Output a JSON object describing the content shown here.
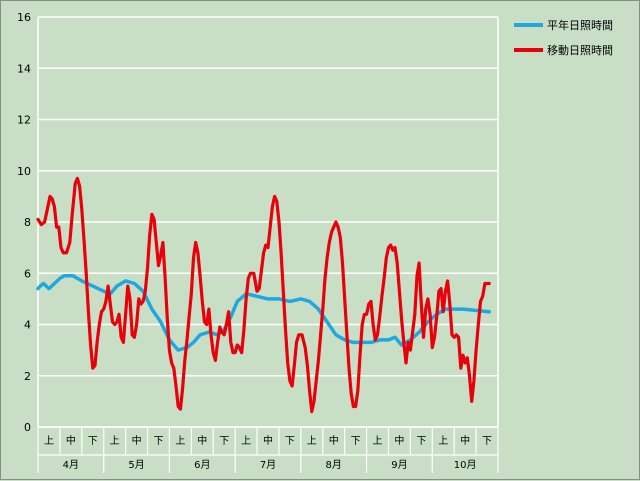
{
  "colors": {
    "plot_bg": "#c8dfc6",
    "grid": "#ffffff",
    "normal": "#1fa8e0",
    "moving": "#e8000b"
  },
  "chart_data": {
    "type": "line",
    "title": "",
    "xlabel": "",
    "ylabel": "",
    "ylim": [
      0,
      16
    ],
    "yticks": [
      "0",
      "2",
      "4",
      "6",
      "8",
      "10",
      "12",
      "14",
      "16"
    ],
    "grid": true,
    "legend_position": "top-right",
    "months": [
      "4月",
      "5月",
      "6月",
      "7月",
      "8月",
      "9月",
      "10月"
    ],
    "periods": [
      "上",
      "中",
      "下"
    ],
    "series": [
      {
        "name": "平年日照時間",
        "color": "#1fa8e0",
        "points": [
          [
            0,
            5.4
          ],
          [
            0.1,
            5.5
          ],
          [
            0.25,
            5.6
          ],
          [
            0.5,
            5.4
          ],
          [
            0.75,
            5.6
          ],
          [
            1,
            5.8
          ],
          [
            1.2,
            5.9
          ],
          [
            1.6,
            5.9
          ],
          [
            2,
            5.7
          ],
          [
            2.5,
            5.5
          ],
          [
            3,
            5.3
          ],
          [
            3.3,
            5.2
          ],
          [
            3.6,
            5.5
          ],
          [
            4,
            5.7
          ],
          [
            4.4,
            5.6
          ],
          [
            4.8,
            5.3
          ],
          [
            5.2,
            4.6
          ],
          [
            5.6,
            4.1
          ],
          [
            6,
            3.4
          ],
          [
            6.4,
            3.0
          ],
          [
            6.8,
            3.1
          ],
          [
            7.1,
            3.3
          ],
          [
            7.4,
            3.6
          ],
          [
            7.8,
            3.7
          ],
          [
            8.2,
            3.6
          ],
          [
            8.5,
            3.8
          ],
          [
            8.8,
            4.3
          ],
          [
            9.1,
            4.9
          ],
          [
            9.5,
            5.2
          ],
          [
            10,
            5.1
          ],
          [
            10.5,
            5.0
          ],
          [
            11,
            5.0
          ],
          [
            11.5,
            4.9
          ],
          [
            12,
            5.0
          ],
          [
            12.4,
            4.9
          ],
          [
            12.8,
            4.6
          ],
          [
            13.2,
            4.1
          ],
          [
            13.6,
            3.6
          ],
          [
            14,
            3.4
          ],
          [
            14.4,
            3.3
          ],
          [
            14.8,
            3.3
          ],
          [
            15.2,
            3.3
          ],
          [
            15.6,
            3.4
          ],
          [
            16,
            3.4
          ],
          [
            16.3,
            3.5
          ],
          [
            16.6,
            3.2
          ],
          [
            17,
            3.4
          ],
          [
            17.4,
            3.7
          ],
          [
            17.8,
            4.1
          ],
          [
            18.2,
            4.4
          ],
          [
            18.6,
            4.6
          ],
          [
            19,
            4.6
          ],
          [
            19.4,
            4.6
          ],
          [
            20.6,
            4.5
          ]
        ]
      },
      {
        "name": "移動日照時間",
        "color": "#e8000b",
        "points": [
          [
            0,
            8.1
          ],
          [
            0.15,
            7.9
          ],
          [
            0.3,
            8.0
          ],
          [
            0.45,
            8.6
          ],
          [
            0.55,
            9.0
          ],
          [
            0.65,
            8.9
          ],
          [
            0.75,
            8.6
          ],
          [
            0.85,
            7.8
          ],
          [
            0.95,
            7.8
          ],
          [
            1.05,
            7.0
          ],
          [
            1.15,
            6.8
          ],
          [
            1.3,
            6.8
          ],
          [
            1.45,
            7.2
          ],
          [
            1.55,
            8.2
          ],
          [
            1.7,
            9.5
          ],
          [
            1.8,
            9.7
          ],
          [
            1.9,
            9.4
          ],
          [
            2.0,
            8.5
          ],
          [
            2.1,
            7.3
          ],
          [
            2.2,
            6.0
          ],
          [
            2.3,
            4.5
          ],
          [
            2.4,
            3.2
          ],
          [
            2.5,
            2.3
          ],
          [
            2.6,
            2.4
          ],
          [
            2.7,
            3.3
          ],
          [
            2.8,
            4.0
          ],
          [
            2.9,
            4.5
          ],
          [
            3.0,
            4.6
          ],
          [
            3.1,
            4.9
          ],
          [
            3.2,
            5.5
          ],
          [
            3.3,
            4.8
          ],
          [
            3.4,
            4.1
          ],
          [
            3.5,
            4.0
          ],
          [
            3.6,
            4.1
          ],
          [
            3.7,
            4.4
          ],
          [
            3.8,
            3.5
          ],
          [
            3.9,
            3.3
          ],
          [
            4.0,
            4.4
          ],
          [
            4.1,
            5.5
          ],
          [
            4.2,
            5.0
          ],
          [
            4.3,
            3.6
          ],
          [
            4.4,
            3.5
          ],
          [
            4.5,
            4.0
          ],
          [
            4.6,
            5.0
          ],
          [
            4.7,
            4.8
          ],
          [
            4.8,
            4.9
          ],
          [
            4.9,
            5.3
          ],
          [
            5.0,
            6.2
          ],
          [
            5.1,
            7.5
          ],
          [
            5.2,
            8.3
          ],
          [
            5.3,
            8.1
          ],
          [
            5.4,
            7.2
          ],
          [
            5.5,
            6.3
          ],
          [
            5.6,
            6.7
          ],
          [
            5.7,
            7.2
          ],
          [
            5.8,
            5.9
          ],
          [
            5.9,
            4.3
          ],
          [
            6.0,
            3.0
          ],
          [
            6.1,
            2.5
          ],
          [
            6.2,
            2.3
          ],
          [
            6.3,
            1.6
          ],
          [
            6.4,
            0.8
          ],
          [
            6.5,
            0.7
          ],
          [
            6.6,
            1.5
          ],
          [
            6.7,
            2.6
          ],
          [
            6.8,
            3.4
          ],
          [
            6.9,
            4.3
          ],
          [
            7.0,
            5.2
          ],
          [
            7.1,
            6.6
          ],
          [
            7.2,
            7.2
          ],
          [
            7.3,
            6.8
          ],
          [
            7.4,
            5.9
          ],
          [
            7.5,
            4.9
          ],
          [
            7.6,
            4.1
          ],
          [
            7.7,
            4.0
          ],
          [
            7.8,
            4.6
          ],
          [
            7.9,
            3.6
          ],
          [
            8.0,
            2.9
          ],
          [
            8.1,
            2.6
          ],
          [
            8.2,
            3.3
          ],
          [
            8.3,
            3.9
          ],
          [
            8.4,
            3.7
          ],
          [
            8.5,
            3.6
          ],
          [
            8.6,
            4.0
          ],
          [
            8.7,
            4.5
          ],
          [
            8.8,
            3.3
          ],
          [
            8.9,
            2.9
          ],
          [
            9.0,
            2.9
          ],
          [
            9.1,
            3.2
          ],
          [
            9.2,
            3.1
          ],
          [
            9.3,
            2.9
          ],
          [
            9.4,
            3.8
          ],
          [
            9.5,
            5.0
          ],
          [
            9.6,
            5.8
          ],
          [
            9.7,
            6.0
          ],
          [
            9.85,
            6.0
          ],
          [
            10.0,
            5.3
          ],
          [
            10.1,
            5.4
          ],
          [
            10.2,
            6.1
          ],
          [
            10.3,
            6.8
          ],
          [
            10.4,
            7.1
          ],
          [
            10.5,
            7.0
          ],
          [
            10.6,
            7.8
          ],
          [
            10.7,
            8.6
          ],
          [
            10.8,
            9.0
          ],
          [
            10.9,
            8.8
          ],
          [
            11.0,
            8.0
          ],
          [
            11.1,
            6.8
          ],
          [
            11.2,
            5.3
          ],
          [
            11.3,
            3.8
          ],
          [
            11.4,
            2.5
          ],
          [
            11.5,
            1.8
          ],
          [
            11.6,
            1.6
          ],
          [
            11.7,
            2.4
          ],
          [
            11.8,
            3.3
          ],
          [
            11.9,
            3.6
          ],
          [
            12.05,
            3.6
          ],
          [
            12.2,
            3.1
          ],
          [
            12.3,
            2.4
          ],
          [
            12.4,
            1.4
          ],
          [
            12.5,
            0.6
          ],
          [
            12.6,
            1.0
          ],
          [
            12.7,
            1.8
          ],
          [
            12.8,
            2.6
          ],
          [
            12.9,
            3.6
          ],
          [
            13.0,
            4.6
          ],
          [
            13.1,
            5.8
          ],
          [
            13.2,
            6.6
          ],
          [
            13.3,
            7.2
          ],
          [
            13.4,
            7.6
          ],
          [
            13.5,
            7.8
          ],
          [
            13.6,
            8.0
          ],
          [
            13.7,
            7.8
          ],
          [
            13.8,
            7.4
          ],
          [
            13.9,
            6.4
          ],
          [
            14.0,
            5.0
          ],
          [
            14.1,
            3.6
          ],
          [
            14.2,
            2.3
          ],
          [
            14.3,
            1.3
          ],
          [
            14.4,
            0.8
          ],
          [
            14.5,
            0.8
          ],
          [
            14.6,
            1.4
          ],
          [
            14.7,
            2.8
          ],
          [
            14.8,
            4.0
          ],
          [
            14.9,
            4.4
          ],
          [
            15.0,
            4.4
          ],
          [
            15.1,
            4.8
          ],
          [
            15.2,
            4.9
          ],
          [
            15.3,
            4.0
          ],
          [
            15.4,
            3.4
          ],
          [
            15.5,
            3.6
          ],
          [
            15.6,
            4.3
          ],
          [
            15.7,
            5.1
          ],
          [
            15.8,
            5.8
          ],
          [
            15.9,
            6.6
          ],
          [
            16.0,
            7.0
          ],
          [
            16.1,
            7.1
          ],
          [
            16.2,
            6.9
          ],
          [
            16.3,
            7.0
          ],
          [
            16.4,
            6.4
          ],
          [
            16.5,
            5.3
          ],
          [
            16.6,
            4.2
          ],
          [
            16.7,
            3.3
          ],
          [
            16.8,
            2.5
          ],
          [
            16.9,
            3.3
          ],
          [
            17.0,
            3.0
          ],
          [
            17.1,
            3.7
          ],
          [
            17.2,
            4.4
          ],
          [
            17.3,
            5.9
          ],
          [
            17.4,
            6.4
          ],
          [
            17.5,
            4.8
          ],
          [
            17.6,
            3.5
          ],
          [
            17.7,
            4.6
          ],
          [
            17.8,
            5.0
          ],
          [
            17.9,
            4.4
          ],
          [
            18.0,
            3.1
          ],
          [
            18.1,
            3.5
          ],
          [
            18.2,
            4.3
          ],
          [
            18.3,
            5.3
          ],
          [
            18.4,
            5.4
          ],
          [
            18.5,
            4.5
          ],
          [
            18.6,
            5.3
          ],
          [
            18.7,
            5.7
          ],
          [
            18.8,
            4.8
          ],
          [
            18.9,
            3.6
          ],
          [
            19.0,
            3.5
          ],
          [
            19.1,
            3.6
          ],
          [
            19.2,
            3.5
          ],
          [
            19.3,
            2.3
          ],
          [
            19.4,
            2.8
          ],
          [
            19.5,
            2.5
          ],
          [
            19.6,
            2.7
          ],
          [
            19.7,
            2.0
          ],
          [
            19.8,
            1.0
          ],
          [
            19.9,
            1.8
          ],
          [
            20.0,
            3.0
          ],
          [
            20.1,
            4.0
          ],
          [
            20.2,
            4.9
          ],
          [
            20.3,
            5.1
          ],
          [
            20.4,
            5.6
          ],
          [
            20.6,
            5.6
          ]
        ]
      }
    ]
  }
}
